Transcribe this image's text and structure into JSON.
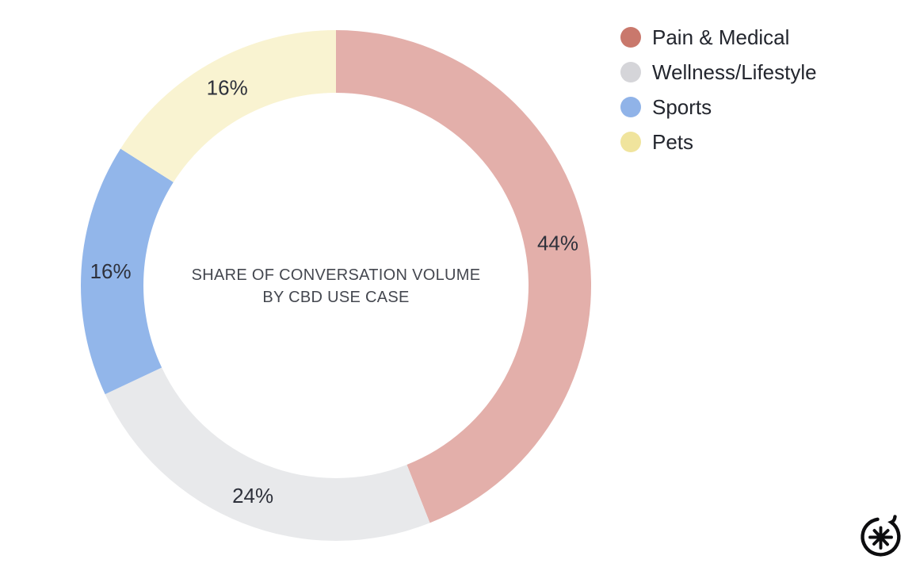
{
  "canvas": {
    "background": "#FFFFFF"
  },
  "chart_data": {
    "type": "pie",
    "variant": "donut",
    "title": "SHARE OF CONVERSATION VOLUME BY CBD USE CASE",
    "title_lines": [
      "SHARE OF CONVERSATION VOLUME",
      "BY CBD USE CASE"
    ],
    "categories": [
      "Pain & Medical",
      "Wellness/Lifestyle",
      "Sports",
      "Pets"
    ],
    "values": [
      44,
      24,
      16,
      16
    ],
    "labels": [
      "44%",
      "24%",
      "16%",
      "16%"
    ],
    "segment_colors": [
      "#E3AFAA",
      "#E8E9EB",
      "#92B6EA",
      "#F9F3D1"
    ],
    "legend_colors": [
      "#C9786C",
      "#D5D5D9",
      "#90B3E8",
      "#F0E49D"
    ],
    "start_angle_deg": 0,
    "direction": "clockwise",
    "legend_position": "top-right",
    "label_color": "#2E313B",
    "title_color": "#44474F",
    "grid": false
  },
  "logo": {
    "icon": "asterisk-circle-logo",
    "color": "#0D0D0F"
  }
}
